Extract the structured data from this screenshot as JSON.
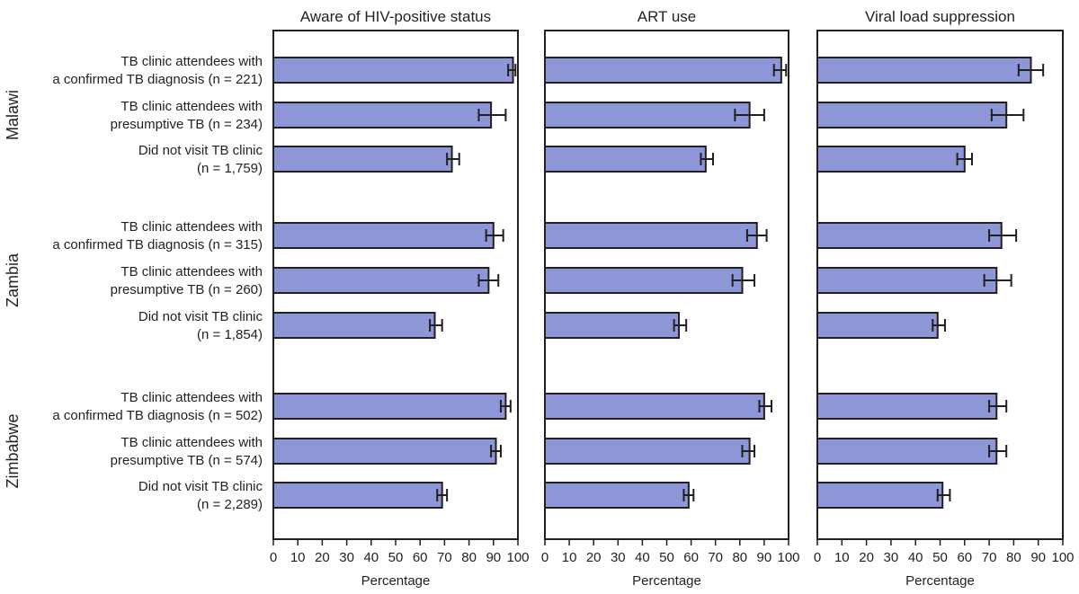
{
  "chart_data": {
    "type": "bar",
    "orientation": "horizontal",
    "panels": [
      {
        "title": "Aware of HIV-positive status",
        "xlabel": "Percentage"
      },
      {
        "title": "ART use",
        "xlabel": "Percentage"
      },
      {
        "title": "Viral load suppression",
        "xlabel": "Percentage"
      }
    ],
    "xlim": [
      0,
      100
    ],
    "xticks": [
      "0",
      "10",
      "20",
      "30",
      "40",
      "50",
      "60",
      "70",
      "80",
      "90",
      "100"
    ],
    "bar_color": "#8d96d6",
    "groups": [
      {
        "name": "Malawi",
        "categories": [
          {
            "line1": "TB clinic attendees with",
            "line2": "a confirmed TB diagnosis (n = 221)",
            "values": [
              98,
              97,
              87
            ],
            "ci_low": [
              96,
              94,
              82
            ],
            "ci_high": [
              99,
              99,
              92
            ]
          },
          {
            "line1": "TB clinic attendees with",
            "line2": "presumptive TB (n = 234)",
            "values": [
              89,
              84,
              77
            ],
            "ci_low": [
              84,
              78,
              71
            ],
            "ci_high": [
              95,
              90,
              84
            ]
          },
          {
            "line1": "Did not visit TB clinic",
            "line2": "(n = 1,759)",
            "values": [
              73,
              66,
              60
            ],
            "ci_low": [
              71,
              64,
              57
            ],
            "ci_high": [
              76,
              69,
              63
            ]
          }
        ]
      },
      {
        "name": "Zambia",
        "categories": [
          {
            "line1": "TB clinic attendees with",
            "line2": "a confirmed TB diagnosis (n = 315)",
            "values": [
              90,
              87,
              75
            ],
            "ci_low": [
              87,
              83,
              70
            ],
            "ci_high": [
              94,
              91,
              81
            ]
          },
          {
            "line1": "TB clinic attendees with",
            "line2": "presumptive TB (n = 260)",
            "values": [
              88,
              81,
              73
            ],
            "ci_low": [
              84,
              77,
              68
            ],
            "ci_high": [
              92,
              86,
              79
            ]
          },
          {
            "line1": "Did not visit TB clinic",
            "line2": "(n = 1,854)",
            "values": [
              66,
              55,
              49
            ],
            "ci_low": [
              64,
              53,
              47
            ],
            "ci_high": [
              69,
              58,
              52
            ]
          }
        ]
      },
      {
        "name": "Zimbabwe",
        "categories": [
          {
            "line1": "TB clinic attendees with",
            "line2": "a confirmed TB diagnosis (n = 502)",
            "values": [
              95,
              90,
              73
            ],
            "ci_low": [
              93,
              88,
              70
            ],
            "ci_high": [
              97,
              93,
              77
            ]
          },
          {
            "line1": "TB clinic attendees with",
            "line2": "presumptive TB (n = 574)",
            "values": [
              91,
              84,
              73
            ],
            "ci_low": [
              89,
              81,
              70
            ],
            "ci_high": [
              93,
              86,
              77
            ]
          },
          {
            "line1": "Did not visit TB clinic",
            "line2": "(n = 2,289)",
            "values": [
              69,
              59,
              51
            ],
            "ci_low": [
              67,
              57,
              49
            ],
            "ci_high": [
              71,
              61,
              54
            ]
          }
        ]
      }
    ]
  }
}
